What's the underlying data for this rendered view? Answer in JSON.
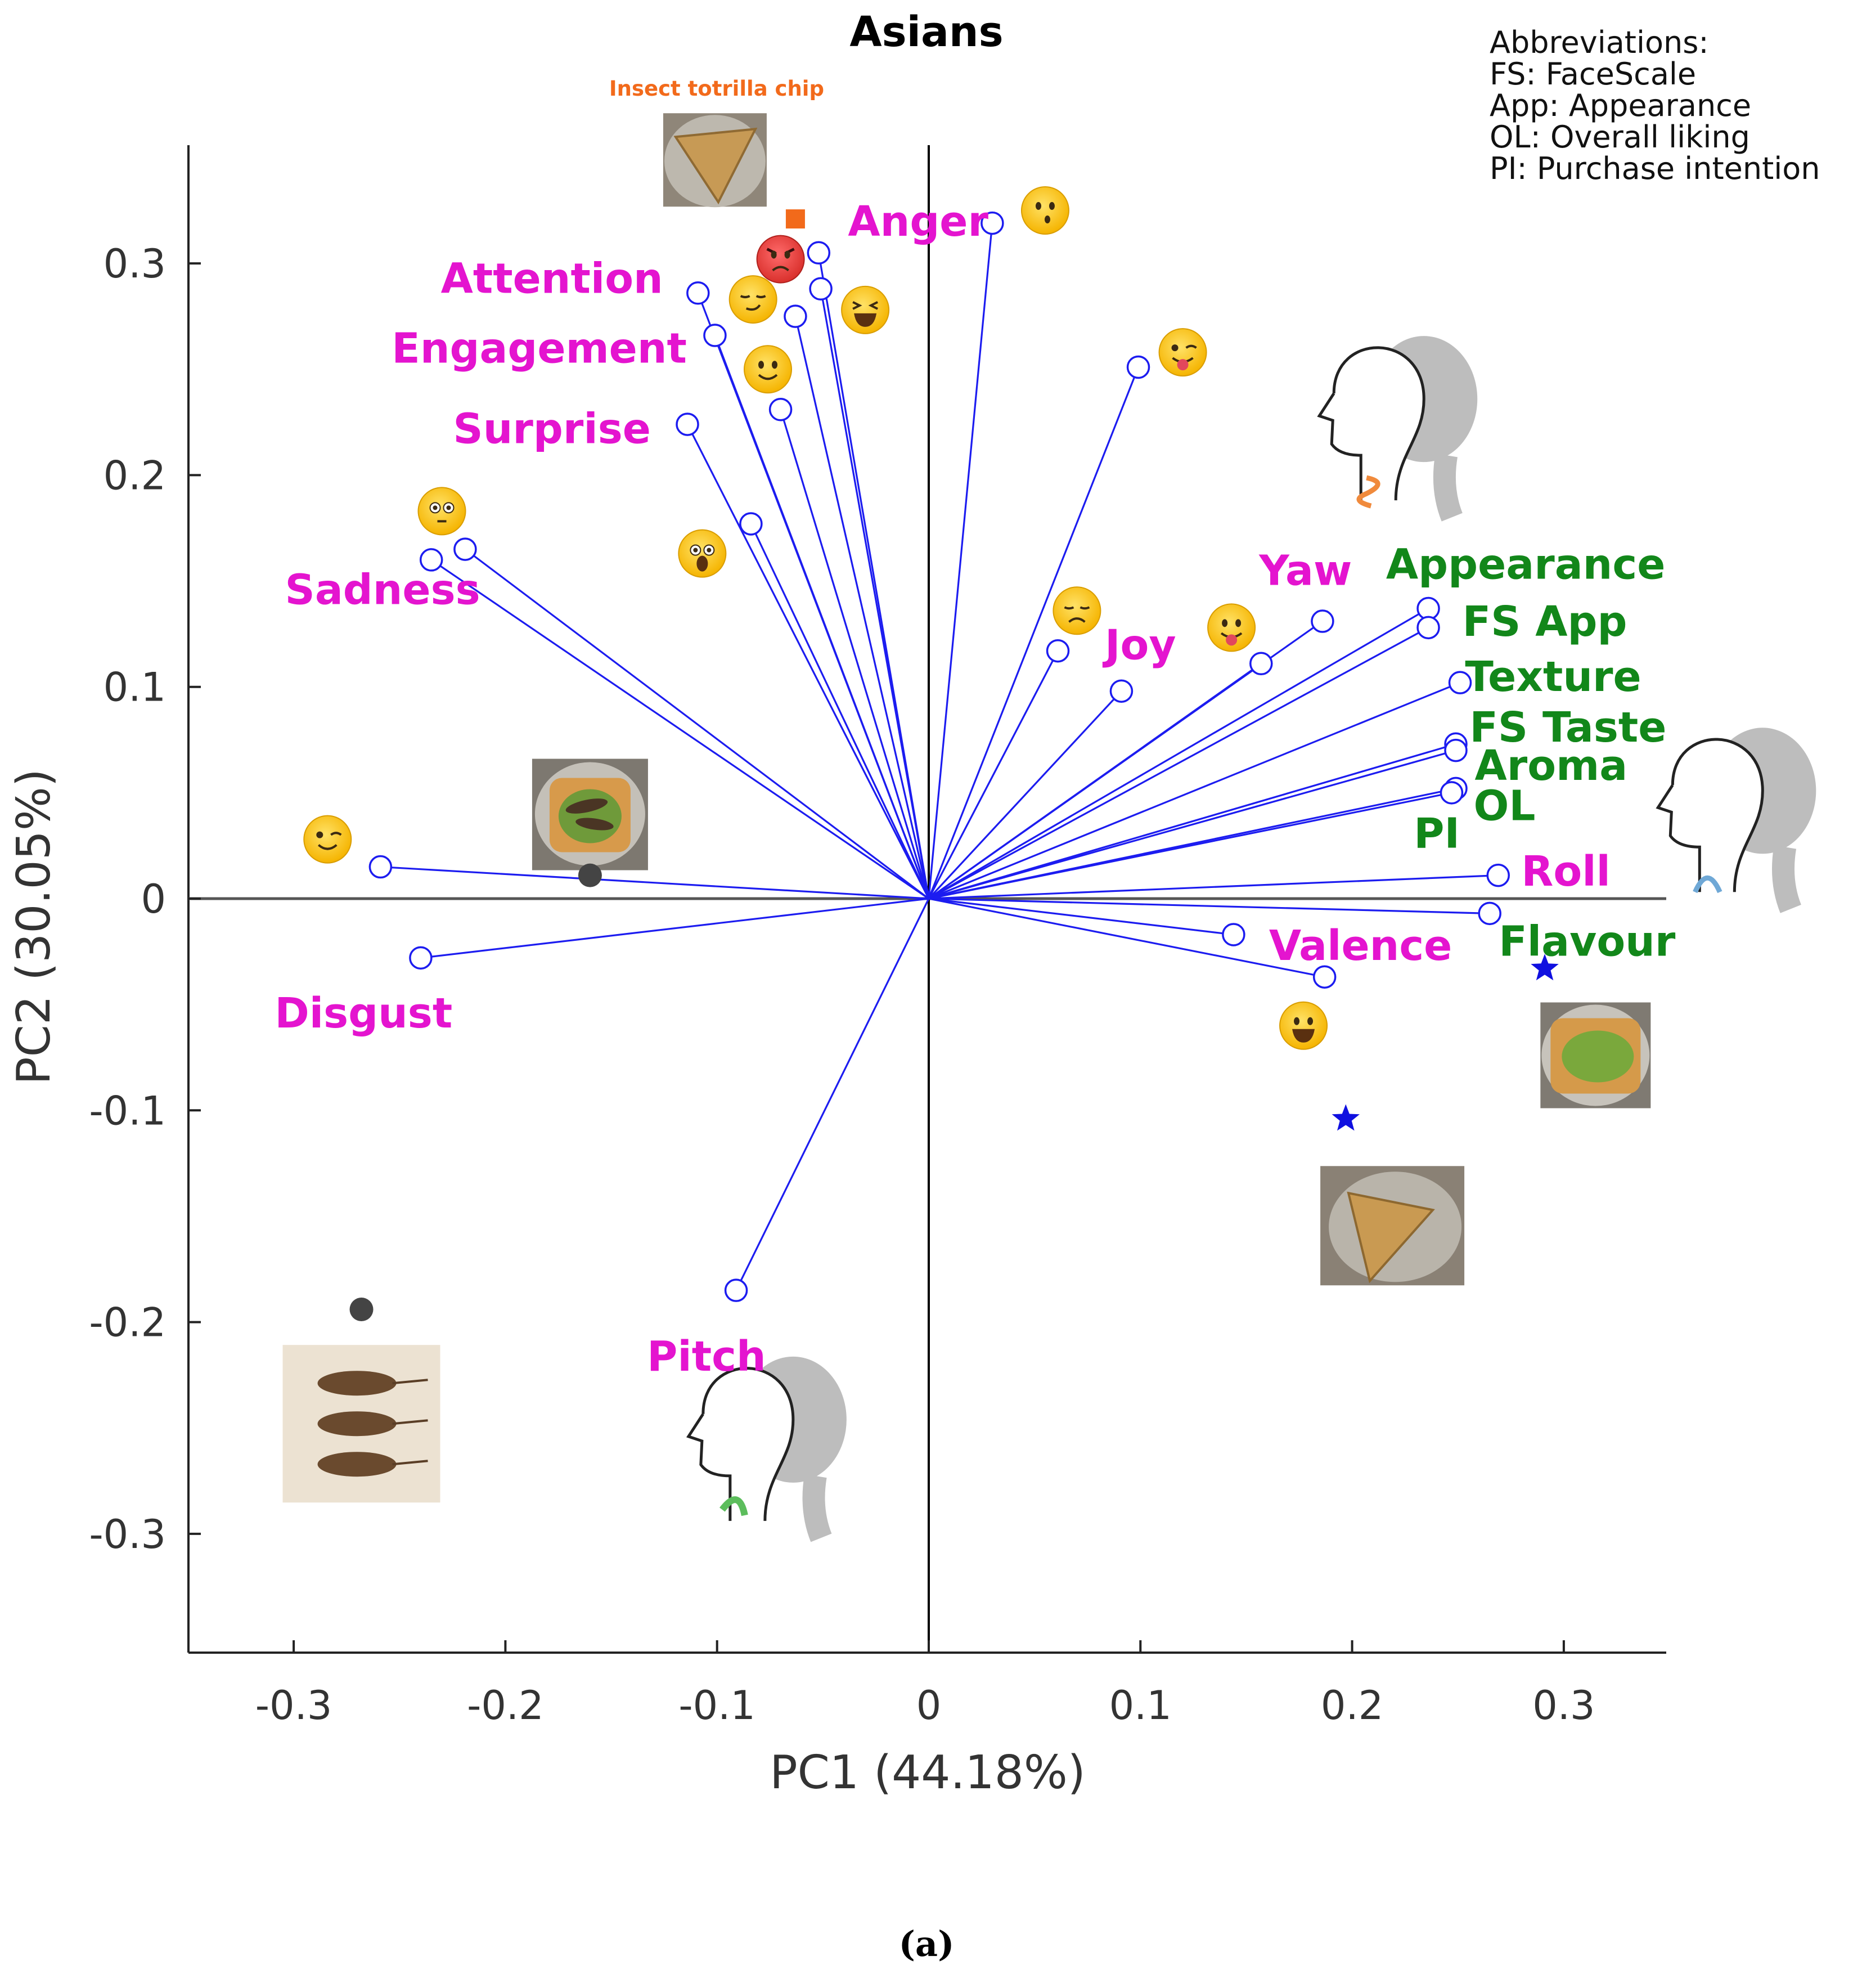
{
  "chart_data": {
    "type": "scatter",
    "subtype": "pca-biplot",
    "title": "Asians",
    "xlabel": "PC1 (44.18%)",
    "ylabel": "PC2 (30.05%)",
    "xlim": [
      -0.35,
      0.35
    ],
    "ylim": [
      -0.35,
      0.35
    ],
    "xticks": [
      -0.3,
      -0.2,
      -0.1,
      0,
      0.1,
      0.2,
      0.3
    ],
    "yticks": [
      -0.3,
      -0.2,
      -0.1,
      0,
      0.1,
      0.2,
      0.3
    ],
    "xtick_labels": [
      "-0.3",
      "-0.2",
      "-0.1",
      "0",
      "0.1",
      "0.2",
      "0.3"
    ],
    "ytick_labels": [
      "-0.3",
      "-0.2",
      "-0.1",
      "0",
      "0.1",
      "0.2",
      "0.3"
    ],
    "grid": false,
    "loadings": [
      {
        "x": 0.03,
        "y": 0.319
      },
      {
        "x": -0.052,
        "y": 0.305
      },
      {
        "x": -0.051,
        "y": 0.288
      },
      {
        "x": -0.109,
        "y": 0.286
      },
      {
        "x": -0.063,
        "y": 0.275
      },
      {
        "x": -0.101,
        "y": 0.266
      },
      {
        "x": 0.099,
        "y": 0.251
      },
      {
        "x": -0.07,
        "y": 0.231
      },
      {
        "x": -0.114,
        "y": 0.224
      },
      {
        "x": -0.084,
        "y": 0.177
      },
      {
        "x": -0.219,
        "y": 0.165
      },
      {
        "x": -0.235,
        "y": 0.16
      },
      {
        "x": 0.236,
        "y": 0.137
      },
      {
        "x": 0.186,
        "y": 0.131
      },
      {
        "x": 0.236,
        "y": 0.128
      },
      {
        "x": 0.061,
        "y": 0.117
      },
      {
        "x": 0.157,
        "y": 0.111
      },
      {
        "x": 0.251,
        "y": 0.102
      },
      {
        "x": 0.091,
        "y": 0.098
      },
      {
        "x": 0.249,
        "y": 0.073
      },
      {
        "x": 0.249,
        "y": 0.07
      },
      {
        "x": 0.249,
        "y": 0.052
      },
      {
        "x": 0.247,
        "y": 0.05
      },
      {
        "x": -0.259,
        "y": 0.015
      },
      {
        "x": 0.269,
        "y": 0.011
      },
      {
        "x": 0.265,
        "y": -0.007
      },
      {
        "x": 0.144,
        "y": -0.017
      },
      {
        "x": -0.24,
        "y": -0.028
      },
      {
        "x": 0.187,
        "y": -0.037
      },
      {
        "x": -0.091,
        "y": -0.185
      }
    ],
    "variable_labels": [
      {
        "text": "Anger",
        "x": -0.005,
        "y": 0.32,
        "color": "#e414cf"
      },
      {
        "text": "Attention",
        "x": -0.178,
        "y": 0.293,
        "color": "#e414cf"
      },
      {
        "text": "Engagement",
        "x": -0.184,
        "y": 0.26,
        "color": "#e414cf"
      },
      {
        "text": "Surprise",
        "x": -0.178,
        "y": 0.222,
        "color": "#e414cf"
      },
      {
        "text": "Sadness",
        "x": -0.258,
        "y": 0.146,
        "color": "#e414cf"
      },
      {
        "text": "Yaw",
        "x": 0.178,
        "y": 0.155,
        "color": "#e414cf"
      },
      {
        "text": "Joy",
        "x": 0.1,
        "y": 0.12,
        "color": "#e414cf"
      },
      {
        "text": "Roll",
        "x": 0.301,
        "y": 0.013,
        "color": "#e414cf"
      },
      {
        "text": "Valence",
        "x": 0.204,
        "y": -0.022,
        "color": "#e414cf"
      },
      {
        "text": "Disgust",
        "x": -0.267,
        "y": -0.054,
        "color": "#e414cf"
      },
      {
        "text": "Pitch",
        "x": -0.105,
        "y": -0.216,
        "color": "#e414cf"
      },
      {
        "text": "Appearance",
        "x": 0.282,
        "y": 0.158,
        "color": "#12871a"
      },
      {
        "text": "FS App",
        "x": 0.291,
        "y": 0.131,
        "color": "#12871a"
      },
      {
        "text": "Texture",
        "x": 0.295,
        "y": 0.105,
        "color": "#12871a"
      },
      {
        "text": "FS Taste",
        "x": 0.302,
        "y": 0.081,
        "color": "#12871a"
      },
      {
        "text": "Aroma",
        "x": 0.294,
        "y": 0.063,
        "color": "#12871a"
      },
      {
        "text": "OL",
        "x": 0.272,
        "y": 0.044,
        "color": "#12871a"
      },
      {
        "text": "PI",
        "x": 0.24,
        "y": 0.031,
        "color": "#12871a"
      },
      {
        "text": "Flavour",
        "x": 0.311,
        "y": -0.02,
        "color": "#12871a"
      }
    ],
    "samples": [
      {
        "shape": "circle",
        "x": -0.16,
        "y": 0.011,
        "color": "#444444"
      },
      {
        "shape": "circle",
        "x": -0.268,
        "y": -0.194,
        "color": "#444444"
      },
      {
        "shape": "square",
        "x": -0.063,
        "y": 0.321,
        "color": "#f26a1b"
      },
      {
        "shape": "star",
        "x": 0.291,
        "y": -0.033,
        "color": "#1010e0"
      },
      {
        "shape": "star",
        "x": 0.197,
        "y": -0.104,
        "color": "#1010e0"
      }
    ],
    "sample_caption": "Insect totrilla chip",
    "emoji_markers": [
      {
        "name": "kissing",
        "x": 0.055,
        "y": 0.325
      },
      {
        "name": "angry",
        "x": -0.07,
        "y": 0.302
      },
      {
        "name": "smirk",
        "x": -0.083,
        "y": 0.283
      },
      {
        "name": "grinning-squint",
        "x": -0.03,
        "y": 0.278
      },
      {
        "name": "wink-tongue",
        "x": 0.12,
        "y": 0.258
      },
      {
        "name": "slight-smile",
        "x": -0.076,
        "y": 0.25
      },
      {
        "name": "flushed",
        "x": -0.23,
        "y": 0.183
      },
      {
        "name": "screaming",
        "x": -0.107,
        "y": 0.163
      },
      {
        "name": "disappointed",
        "x": 0.07,
        "y": 0.136
      },
      {
        "name": "tongue-out",
        "x": 0.143,
        "y": 0.128
      },
      {
        "name": "wink",
        "x": -0.284,
        "y": 0.028
      },
      {
        "name": "grinning",
        "x": 0.177,
        "y": -0.06
      }
    ],
    "head_icons": [
      {
        "name": "head-yaw-icon",
        "x": 0.21,
        "y": 0.22
      },
      {
        "name": "head-roll-icon",
        "x": 0.37,
        "y": 0.035
      },
      {
        "name": "head-pitch-icon",
        "x": -0.088,
        "y": -0.262
      }
    ],
    "photos": [
      {
        "name": "tortilla-chip-photo-top",
        "x": -0.101,
        "y": 0.347
      },
      {
        "name": "avocado-toast-cricket-photo",
        "x": -0.16,
        "y": 0.04
      },
      {
        "name": "dried-crickets-photo",
        "x": -0.268,
        "y": -0.248
      },
      {
        "name": "avocado-toast-photo",
        "x": 0.315,
        "y": -0.074
      },
      {
        "name": "tortilla-chip-photo-bottom",
        "x": 0.219,
        "y": -0.155
      }
    ]
  },
  "abbreviations": {
    "heading": "Abbreviations:",
    "items": [
      "FS: FaceScale",
      "App: Appearance",
      "OL: Overall liking",
      "PI: Purchase intention"
    ]
  },
  "caption": "(a)",
  "colors": {
    "loading_line": "#1c1cf0",
    "emotion_label": "#e414cf",
    "sensory_label": "#12871a",
    "axis": "#222222",
    "zero_line": "#555555"
  }
}
